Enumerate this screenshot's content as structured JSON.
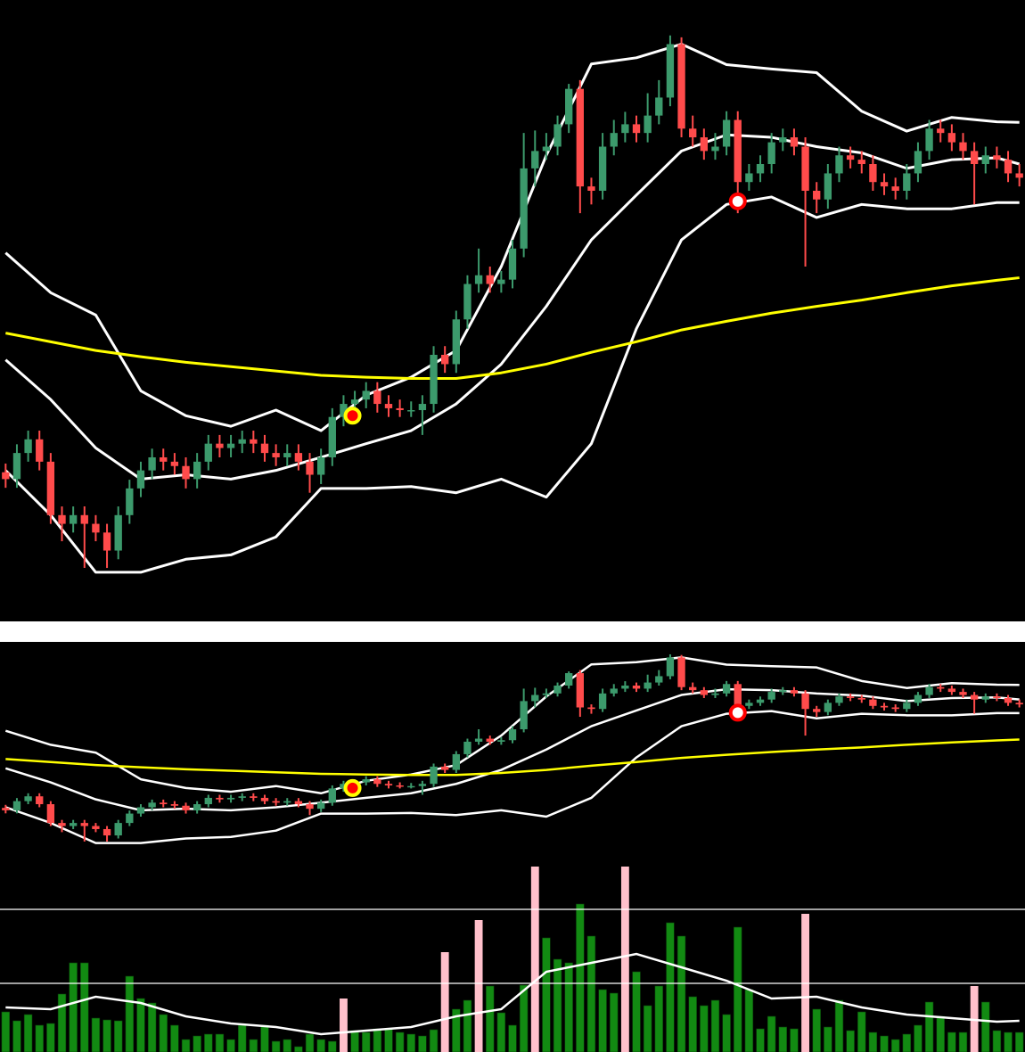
{
  "chart_data": {
    "type": "candlestick",
    "ylim": [
      0,
      100
    ],
    "open": [
      24.0,
      22.9,
      27.1,
      29.3,
      25.7,
      17.1,
      15.7,
      17.1,
      15.7,
      14.3,
      11.4,
      17.1,
      21.4,
      24.3,
      26.4,
      25.7,
      25.0,
      22.9,
      25.7,
      28.6,
      27.9,
      28.6,
      29.3,
      28.6,
      27.1,
      26.4,
      27.1,
      25.7,
      23.6,
      26.4,
      32.9,
      35.0,
      35.7,
      37.1,
      35.0,
      34.3,
      34.0,
      34.0,
      35.0,
      42.9,
      41.4,
      48.6,
      54.3,
      55.7,
      54.3,
      55.0,
      60.0,
      72.9,
      75.7,
      76.4,
      80.0,
      85.7,
      70.0,
      69.3,
      76.4,
      78.6,
      80.0,
      78.6,
      81.4,
      84.3,
      92.9,
      79.3,
      77.9,
      75.7,
      76.4,
      80.7,
      70.7,
      72.1,
      73.6,
      77.1,
      77.9,
      76.4,
      69.3,
      67.9,
      72.1,
      75.0,
      74.3,
      73.6,
      70.7,
      70.0,
      69.3,
      72.1,
      75.7,
      79.3,
      78.6,
      77.1,
      75.7,
      73.6,
      75.0,
      74.3,
      72.1
    ],
    "high": [
      25.4,
      28.5,
      30.7,
      30.7,
      27.1,
      18.5,
      18.5,
      18.5,
      17.1,
      15.7,
      18.5,
      22.8,
      25.7,
      27.8,
      27.8,
      27.1,
      26.4,
      27.1,
      30.0,
      30.0,
      30.0,
      30.7,
      30.7,
      30.0,
      28.5,
      28.5,
      28.5,
      27.1,
      27.8,
      34.3,
      36.4,
      37.1,
      38.5,
      38.5,
      36.4,
      35.7,
      35.4,
      36.4,
      44.3,
      44.3,
      50.0,
      55.7,
      60.0,
      57.1,
      56.4,
      61.4,
      78.6,
      79.0,
      78.6,
      81.4,
      86.5,
      87.1,
      71.4,
      78.6,
      80.7,
      82.0,
      81.4,
      85.0,
      87.1,
      94.3,
      94.0,
      81.4,
      79.3,
      78.6,
      82.1,
      82.1,
      73.6,
      75.0,
      78.6,
      79.3,
      79.3,
      77.9,
      70.7,
      73.6,
      76.4,
      76.4,
      75.7,
      75.0,
      72.1,
      71.4,
      73.6,
      77.1,
      80.7,
      80.7,
      80.0,
      78.6,
      77.1,
      76.4,
      76.4,
      75.7,
      73.6
    ],
    "low": [
      21.5,
      21.5,
      25.7,
      24.3,
      15.7,
      12.9,
      14.3,
      8.6,
      12.9,
      8.6,
      10.0,
      15.7,
      20.0,
      22.9,
      24.3,
      23.6,
      21.4,
      21.4,
      24.3,
      26.4,
      26.4,
      27.1,
      27.1,
      25.7,
      25.0,
      25.0,
      24.3,
      20.7,
      22.1,
      25.0,
      31.4,
      33.6,
      34.3,
      33.6,
      32.9,
      32.9,
      32.9,
      30.0,
      33.6,
      40.0,
      40.0,
      47.1,
      52.9,
      52.9,
      52.9,
      53.6,
      58.6,
      70.0,
      74.3,
      75.0,
      78.6,
      65.7,
      67.1,
      67.9,
      75.0,
      77.1,
      77.1,
      77.1,
      80.0,
      82.9,
      77.9,
      76.4,
      74.3,
      74.3,
      75.0,
      65.7,
      69.3,
      70.7,
      72.1,
      75.7,
      75.0,
      57.1,
      65.7,
      66.4,
      70.7,
      72.9,
      72.1,
      69.3,
      68.6,
      67.9,
      67.9,
      70.7,
      74.3,
      77.1,
      75.7,
      74.3,
      67.1,
      72.1,
      72.9,
      70.7,
      70.0
    ],
    "close": [
      22.9,
      27.1,
      29.3,
      25.7,
      17.1,
      15.7,
      17.1,
      15.7,
      14.3,
      11.4,
      17.1,
      21.4,
      24.3,
      26.4,
      25.7,
      25.0,
      22.9,
      25.7,
      28.6,
      27.9,
      28.6,
      29.3,
      28.6,
      27.1,
      26.4,
      27.1,
      25.7,
      23.6,
      26.4,
      32.9,
      35.0,
      35.7,
      37.1,
      35.0,
      34.3,
      34.0,
      34.0,
      35.0,
      42.9,
      41.4,
      48.6,
      54.3,
      55.7,
      54.3,
      55.0,
      60.0,
      72.9,
      75.7,
      76.4,
      80.0,
      85.7,
      70.0,
      69.3,
      76.4,
      78.6,
      80.0,
      78.6,
      81.4,
      84.3,
      92.9,
      79.3,
      77.9,
      75.7,
      76.4,
      80.7,
      70.7,
      72.1,
      73.6,
      77.1,
      77.9,
      76.4,
      69.3,
      67.9,
      72.1,
      75.0,
      74.3,
      73.6,
      70.7,
      70.0,
      69.3,
      72.1,
      75.7,
      79.3,
      78.6,
      77.1,
      75.7,
      73.6,
      75.0,
      74.3,
      72.1,
      71.4
    ],
    "up_color": "#3c9a6c",
    "down_color": "#ff4b4b",
    "overlays": {
      "x": [
        0,
        4,
        8,
        12,
        16,
        20,
        24,
        28,
        32,
        36,
        40,
        44,
        48,
        52,
        56,
        60,
        64,
        68,
        72,
        76,
        80,
        84,
        88,
        90
      ],
      "series": [
        {
          "color": "#ffffff",
          "values": [
            59.3,
            52.9,
            49.3,
            37.1,
            33.1,
            31.4,
            34.0,
            30.7,
            36.4,
            39.3,
            43.6,
            57.1,
            75.0,
            89.7,
            90.7,
            92.9,
            89.6,
            88.9,
            88.3,
            82.1,
            78.9,
            81.1,
            80.4,
            80.3
          ]
        },
        {
          "color": "#ffffff",
          "values": [
            42.1,
            35.7,
            27.9,
            22.9,
            23.6,
            22.9,
            24.3,
            26.4,
            28.6,
            30.7,
            35.0,
            41.4,
            50.7,
            61.4,
            68.6,
            75.7,
            78.3,
            77.9,
            76.4,
            75.4,
            72.9,
            74.3,
            74.6,
            73.6
          ]
        },
        {
          "color": "#ffffff",
          "values": [
            24.3,
            17.1,
            7.9,
            7.9,
            10.0,
            10.7,
            13.6,
            21.4,
            21.4,
            21.7,
            20.7,
            22.9,
            20.0,
            28.6,
            47.1,
            61.4,
            67.1,
            68.3,
            65.0,
            67.1,
            66.4,
            66.4,
            67.4,
            67.4
          ]
        },
        {
          "color": "#ffff00",
          "values": [
            46.4,
            45.0,
            43.6,
            42.6,
            41.7,
            41.0,
            40.3,
            39.6,
            39.3,
            39.1,
            39.1,
            40.0,
            41.4,
            43.3,
            45.0,
            46.9,
            48.3,
            49.6,
            50.7,
            51.7,
            52.9,
            54.0,
            54.9,
            55.3
          ]
        }
      ]
    },
    "signals": [
      {
        "x": 30.8,
        "value": 33.1,
        "ring": "#ffff00",
        "fill": "#ff0000"
      },
      {
        "x": 65,
        "value": 67.6,
        "ring": "#ff0000",
        "fill": "#ffffff"
      }
    ],
    "volume": {
      "ylim": [
        0,
        215
      ],
      "color": "#128a12",
      "highlight_color": "#ffc0cb",
      "values": [
        45,
        35,
        42,
        30,
        32,
        65,
        100,
        100,
        38,
        36,
        35,
        85,
        60,
        55,
        42,
        30,
        14,
        18,
        20,
        20,
        14,
        30,
        14,
        30,
        12,
        14,
        6,
        20,
        14,
        12,
        60,
        24,
        22,
        26,
        26,
        22,
        20,
        18,
        25,
        112,
        48,
        58,
        148,
        74,
        44,
        30,
        75,
        208,
        128,
        104,
        100,
        166,
        130,
        70,
        66,
        208,
        90,
        52,
        74,
        145,
        130,
        62,
        52,
        58,
        42,
        140,
        70,
        26,
        40,
        28,
        26,
        155,
        48,
        28,
        58,
        24,
        45,
        22,
        18,
        14,
        20,
        30,
        56,
        40,
        22,
        22,
        74,
        56,
        24,
        22,
        22
      ],
      "highlight": [
        30,
        39,
        42,
        47,
        55,
        71,
        86
      ],
      "reference_lines": [
        160,
        77
      ],
      "ma": [
        50,
        48,
        62,
        55,
        40,
        32,
        28,
        20,
        24,
        28,
        40,
        48,
        90,
        100,
        110,
        95,
        80,
        60,
        62,
        50,
        42,
        38,
        34,
        35
      ],
      "ma_color": "#ffffff"
    }
  }
}
